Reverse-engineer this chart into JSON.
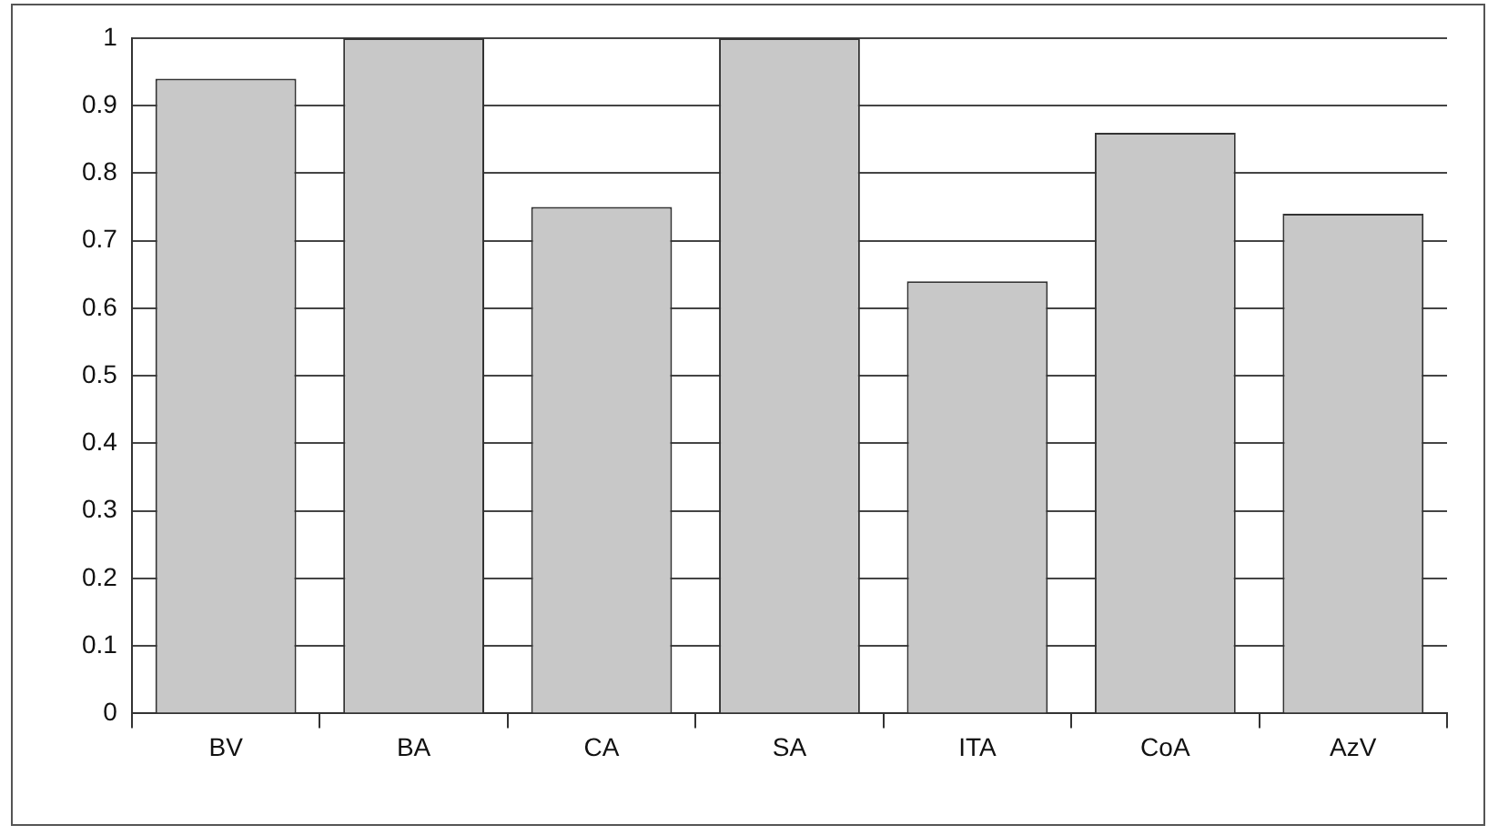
{
  "chart_data": {
    "type": "bar",
    "categories": [
      "BV",
      "BA",
      "CA",
      "SA",
      "ITA",
      "CoA",
      "AzV"
    ],
    "values": [
      0.94,
      1.0,
      0.75,
      1.0,
      0.64,
      0.86,
      0.74
    ],
    "color": "#c8c8c8",
    "ylim": [
      0,
      1
    ],
    "yticks": [
      0,
      0.1,
      0.2,
      0.3,
      0.4,
      0.5,
      0.6,
      0.7,
      0.8,
      0.9,
      1
    ],
    "grid": "y",
    "legend": false
  }
}
